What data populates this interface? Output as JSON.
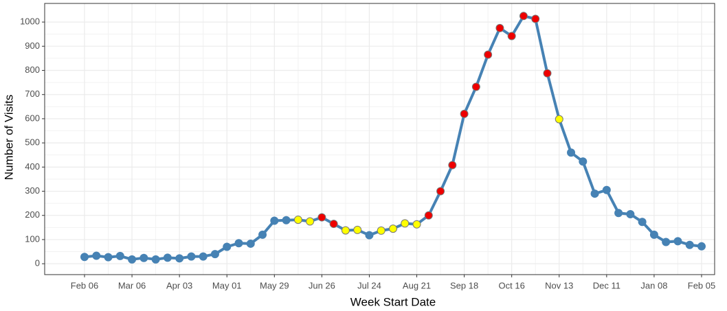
{
  "chart_data": {
    "type": "line",
    "x_label": "Week Start Date",
    "y_label": "Number of Visits",
    "categories": [
      "Feb 06",
      null,
      null,
      null,
      "Mar 06",
      null,
      null,
      null,
      "Apr 03",
      null,
      null,
      null,
      "May 01",
      null,
      null,
      null,
      "May 29",
      null,
      null,
      null,
      "Jun 26",
      null,
      null,
      null,
      "Jul 24",
      null,
      null,
      null,
      "Aug 21",
      null,
      null,
      null,
      "Sep 18",
      null,
      null,
      null,
      "Oct 16",
      null,
      null,
      null,
      "Nov 13",
      null,
      null,
      null,
      "Dec 11",
      null,
      null,
      null,
      "Jan 08",
      null,
      null,
      null,
      "Feb 05"
    ],
    "series": [
      {
        "color": "#4682b4",
        "values": [
          28,
          33,
          27,
          32,
          18,
          24,
          18,
          25,
          22,
          30,
          30,
          40,
          70,
          85,
          83,
          120,
          178,
          180,
          182,
          175,
          192,
          165,
          138,
          140,
          118,
          137,
          145,
          167,
          163,
          200,
          300,
          408,
          620,
          732,
          865,
          975,
          942,
          1025,
          1013,
          788,
          598,
          460,
          423,
          290,
          305,
          210,
          205,
          173,
          120,
          90,
          93,
          78,
          72
        ],
        "point_colors": [
          "#4682b4",
          "#4682b4",
          "#4682b4",
          "#4682b4",
          "#4682b4",
          "#4682b4",
          "#4682b4",
          "#4682b4",
          "#4682b4",
          "#4682b4",
          "#4682b4",
          "#4682b4",
          "#4682b4",
          "#4682b4",
          "#4682b4",
          "#4682b4",
          "#4682b4",
          "#4682b4",
          "#ffff00",
          "#ffff00",
          "#ee0000",
          "#ee0000",
          "#ffff00",
          "#ffff00",
          "#4682b4",
          "#ffff00",
          "#ffff00",
          "#ffff00",
          "#ffff00",
          "#ee0000",
          "#ee0000",
          "#ee0000",
          "#ee0000",
          "#ee0000",
          "#ee0000",
          "#ee0000",
          "#ee0000",
          "#ee0000",
          "#ee0000",
          "#ee0000",
          "#ffff00",
          "#4682b4",
          "#4682b4",
          "#4682b4",
          "#4682b4",
          "#4682b4",
          "#4682b4",
          "#4682b4",
          "#4682b4",
          "#4682b4",
          "#4682b4",
          "#4682b4",
          "#4682b4"
        ]
      }
    ],
    "ylim": [
      -45,
      1077
    ],
    "yticks": [
      0,
      100,
      200,
      300,
      400,
      500,
      600,
      700,
      800,
      900,
      1000
    ],
    "grid": true
  }
}
